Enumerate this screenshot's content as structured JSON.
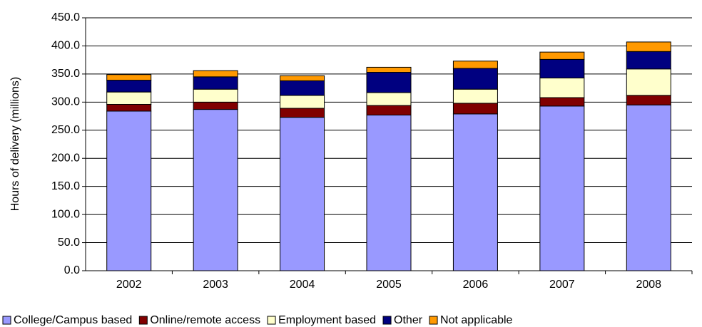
{
  "chart_data": {
    "type": "stacked-bar",
    "y_label": "Hours of delivery (millions)",
    "categories": [
      "2002",
      "2003",
      "2004",
      "2005",
      "2006",
      "2007",
      "2008"
    ],
    "series": [
      {
        "name": "College/Campus based",
        "color": "#9999ff",
        "values": [
          284,
          287,
          273,
          277,
          279,
          293,
          295
        ]
      },
      {
        "name": "Online/remote access",
        "color": "#800000",
        "values": [
          12,
          13,
          16,
          17,
          19,
          15,
          17
        ]
      },
      {
        "name": "Employment based",
        "color": "#ffffcc",
        "values": [
          22,
          23,
          23,
          23,
          25,
          35,
          47
        ]
      },
      {
        "name": "Other",
        "color": "#000080",
        "values": [
          21,
          22,
          26,
          36,
          37,
          33,
          31
        ]
      },
      {
        "name": "Not applicable",
        "color": "#ff9900",
        "values": [
          10,
          11,
          9,
          9,
          13,
          13,
          17
        ]
      }
    ],
    "ylim": [
      0,
      450
    ],
    "yticks": [
      {
        "value": 0,
        "label": "0.0"
      },
      {
        "value": 50,
        "label": "50.0"
      },
      {
        "value": 100,
        "label": "100.0"
      },
      {
        "value": 150,
        "label": "150.0"
      },
      {
        "value": 200,
        "label": "200.0"
      },
      {
        "value": 250,
        "label": "250.0"
      },
      {
        "value": 300,
        "label": "300.0"
      },
      {
        "value": 350,
        "label": "350.0"
      },
      {
        "value": 400,
        "label": "400.0"
      },
      {
        "value": 450,
        "label": "450.0"
      }
    ],
    "grid": true,
    "legend": "bottom"
  }
}
